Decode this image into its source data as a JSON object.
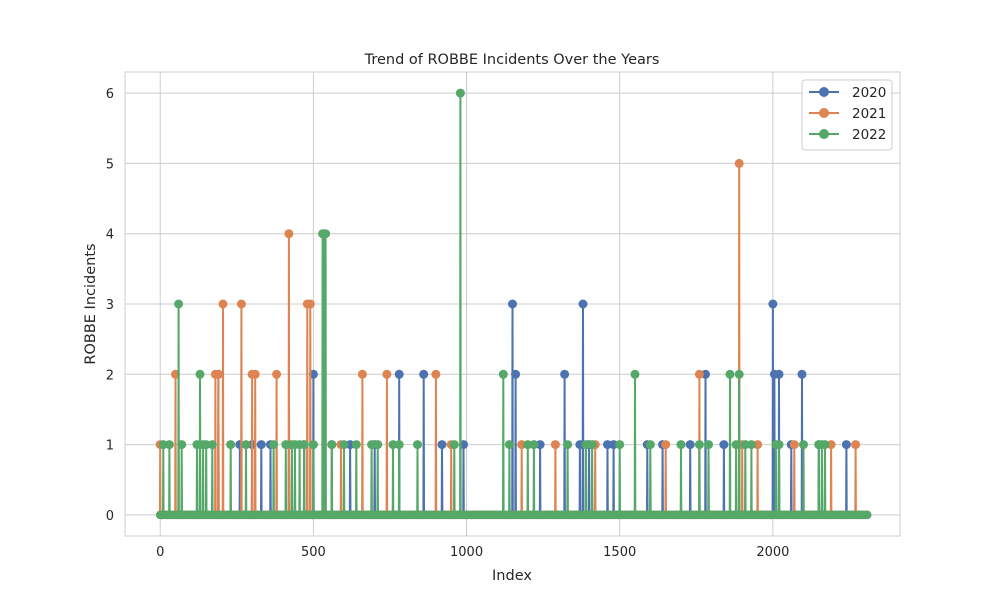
{
  "chart_data": {
    "type": "line",
    "title": "Trend of ROBBE Incidents Over the Years",
    "xlabel": "Index",
    "ylabel": "ROBBE Incidents",
    "xlim": [
      -115,
      2415
    ],
    "ylim": [
      -0.3,
      6.3
    ],
    "xticks": [
      0,
      500,
      1000,
      1500,
      2000
    ],
    "yticks": [
      0,
      1,
      2,
      3,
      4,
      5,
      6
    ],
    "grid": true,
    "legend_position": "top-right",
    "x_range": [
      0,
      2310
    ],
    "baseline": 0,
    "series": [
      {
        "name": "2020",
        "color": "#4c72b0",
        "nonzero": [
          [
            190,
            2
          ],
          [
            260,
            1
          ],
          [
            300,
            1
          ],
          [
            330,
            1
          ],
          [
            360,
            1
          ],
          [
            420,
            1
          ],
          [
            470,
            1
          ],
          [
            500,
            2
          ],
          [
            560,
            1
          ],
          [
            620,
            1
          ],
          [
            700,
            1
          ],
          [
            780,
            2
          ],
          [
            860,
            2
          ],
          [
            920,
            1
          ],
          [
            990,
            1
          ],
          [
            1150,
            3
          ],
          [
            1160,
            2
          ],
          [
            1240,
            1
          ],
          [
            1320,
            2
          ],
          [
            1370,
            1
          ],
          [
            1380,
            3
          ],
          [
            1400,
            1
          ],
          [
            1460,
            1
          ],
          [
            1480,
            1
          ],
          [
            1590,
            1
          ],
          [
            1640,
            1
          ],
          [
            1730,
            1
          ],
          [
            1780,
            2
          ],
          [
            1840,
            1
          ],
          [
            2000,
            3
          ],
          [
            2005,
            2
          ],
          [
            2020,
            2
          ],
          [
            2060,
            1
          ],
          [
            2095,
            2
          ],
          [
            2150,
            1
          ],
          [
            2240,
            1
          ]
        ]
      },
      {
        "name": "2021",
        "color": "#dd8452",
        "nonzero": [
          [
            0,
            1
          ],
          [
            50,
            2
          ],
          [
            180,
            2
          ],
          [
            190,
            2
          ],
          [
            205,
            3
          ],
          [
            265,
            3
          ],
          [
            300,
            2
          ],
          [
            310,
            2
          ],
          [
            380,
            2
          ],
          [
            420,
            4
          ],
          [
            480,
            3
          ],
          [
            490,
            3
          ],
          [
            590,
            1
          ],
          [
            660,
            2
          ],
          [
            740,
            2
          ],
          [
            900,
            2
          ],
          [
            950,
            1
          ],
          [
            1180,
            1
          ],
          [
            1290,
            1
          ],
          [
            1420,
            1
          ],
          [
            1650,
            1
          ],
          [
            1760,
            2
          ],
          [
            1890,
            5
          ],
          [
            1900,
            1
          ],
          [
            1950,
            1
          ],
          [
            2070,
            1
          ],
          [
            2190,
            1
          ],
          [
            2270,
            1
          ]
        ]
      },
      {
        "name": "2022",
        "color": "#55a868",
        "nonzero": [
          [
            10,
            1
          ],
          [
            30,
            1
          ],
          [
            60,
            3
          ],
          [
            70,
            1
          ],
          [
            120,
            1
          ],
          [
            130,
            2
          ],
          [
            140,
            1
          ],
          [
            150,
            1
          ],
          [
            170,
            1
          ],
          [
            230,
            1
          ],
          [
            280,
            1
          ],
          [
            370,
            1
          ],
          [
            410,
            1
          ],
          [
            430,
            1
          ],
          [
            440,
            1
          ],
          [
            455,
            1
          ],
          [
            470,
            1
          ],
          [
            500,
            1
          ],
          [
            530,
            4
          ],
          [
            535,
            4
          ],
          [
            540,
            4
          ],
          [
            560,
            1
          ],
          [
            600,
            1
          ],
          [
            640,
            1
          ],
          [
            690,
            1
          ],
          [
            710,
            1
          ],
          [
            760,
            1
          ],
          [
            780,
            1
          ],
          [
            840,
            1
          ],
          [
            960,
            1
          ],
          [
            980,
            6
          ],
          [
            1120,
            2
          ],
          [
            1140,
            1
          ],
          [
            1200,
            1
          ],
          [
            1220,
            1
          ],
          [
            1330,
            1
          ],
          [
            1390,
            1
          ],
          [
            1410,
            1
          ],
          [
            1500,
            1
          ],
          [
            1550,
            2
          ],
          [
            1600,
            1
          ],
          [
            1700,
            1
          ],
          [
            1760,
            1
          ],
          [
            1790,
            1
          ],
          [
            1860,
            2
          ],
          [
            1880,
            1
          ],
          [
            1890,
            2
          ],
          [
            1910,
            1
          ],
          [
            1930,
            1
          ],
          [
            2010,
            1
          ],
          [
            2020,
            1
          ],
          [
            2100,
            1
          ],
          [
            2150,
            1
          ],
          [
            2160,
            1
          ],
          [
            2170,
            1
          ]
        ]
      }
    ]
  }
}
